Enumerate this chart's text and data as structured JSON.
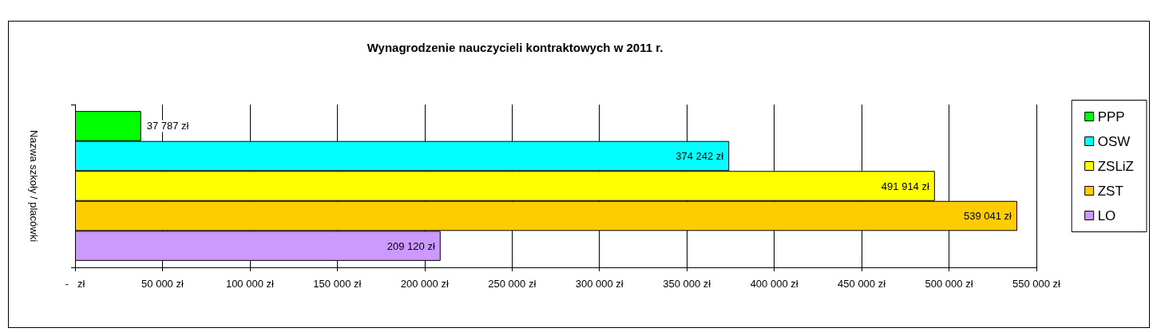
{
  "chart_data": {
    "type": "bar",
    "orientation": "horizontal",
    "title": "Wynagrodzenie nauczycieli kontraktowych w 2011 r.",
    "ylabel": "Nazwa szkoły / placówki",
    "categories": [
      null
    ],
    "series": [
      {
        "name": "PPP",
        "color": "#00ff00",
        "values": [
          37787
        ],
        "value_labels": [
          "37 787 zł"
        ]
      },
      {
        "name": "OSW",
        "color": "#00ffff",
        "values": [
          374242
        ],
        "value_labels": [
          "374 242 zł"
        ]
      },
      {
        "name": "ZSLiZ",
        "color": "#ffff00",
        "values": [
          491914
        ],
        "value_labels": [
          "491 914 zł"
        ]
      },
      {
        "name": "ZST",
        "color": "#ffcc00",
        "values": [
          539041
        ],
        "value_labels": [
          "539 041 zł"
        ]
      },
      {
        "name": "LO",
        "color": "#cc99ff",
        "values": [
          209120
        ],
        "value_labels": [
          "209 120 zł"
        ]
      }
    ],
    "xlim": [
      0,
      550000
    ],
    "xticks": [
      {
        "value": 0,
        "label": "-   zł"
      },
      {
        "value": 50000,
        "label": "50 000 zł"
      },
      {
        "value": 100000,
        "label": "100 000 zł"
      },
      {
        "value": 150000,
        "label": "150 000 zł"
      },
      {
        "value": 200000,
        "label": "200 000 zł"
      },
      {
        "value": 250000,
        "label": "250 000 zł"
      },
      {
        "value": 300000,
        "label": "300 000 zł"
      },
      {
        "value": 350000,
        "label": "350 000 zł"
      },
      {
        "value": 400000,
        "label": "400 000 zł"
      },
      {
        "value": 450000,
        "label": "450 000 zł"
      },
      {
        "value": 500000,
        "label": "500 000 zł"
      },
      {
        "value": 550000,
        "label": "550 000 zł"
      }
    ],
    "grid": "x",
    "legend": "right"
  }
}
